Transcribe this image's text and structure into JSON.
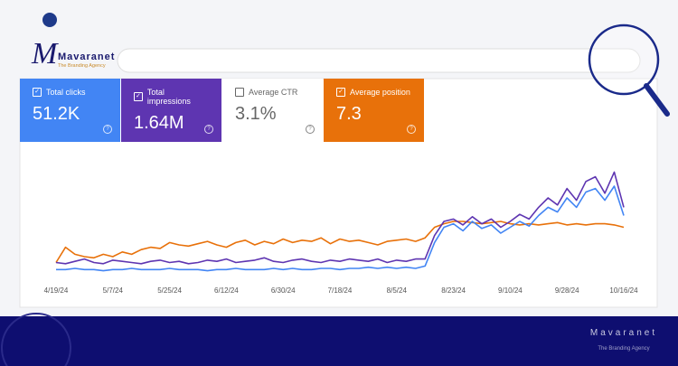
{
  "logo": {
    "name": "Mavaranet",
    "tagline": "The Branding Agency"
  },
  "metrics": [
    {
      "label": "Total clicks",
      "value": "51.2K",
      "checked": true,
      "color": "#4285f4"
    },
    {
      "label": "Total impressions",
      "value": "1.64M",
      "checked": true,
      "color": "#5e35b1"
    },
    {
      "label": "Average CTR",
      "value": "3.1%",
      "checked": false,
      "color": "#ffffff"
    },
    {
      "label": "Average position",
      "value": "7.3",
      "checked": true,
      "color": "#e8710a"
    }
  ],
  "chart_data": {
    "type": "line",
    "categories": [
      "4/19/24",
      null,
      null,
      null,
      null,
      null,
      "5/7/24",
      null,
      null,
      null,
      null,
      null,
      "5/25/24",
      null,
      null,
      null,
      null,
      null,
      "6/12/24",
      null,
      null,
      null,
      null,
      null,
      "6/30/24",
      null,
      null,
      null,
      null,
      null,
      "7/18/24",
      null,
      null,
      null,
      null,
      null,
      "8/5/24",
      null,
      null,
      null,
      null,
      null,
      "8/23/24",
      null,
      null,
      null,
      null,
      null,
      "9/10/24",
      null,
      null,
      null,
      null,
      null,
      "9/28/24",
      null,
      null,
      null,
      null,
      null,
      "10/16/24"
    ],
    "series": [
      {
        "name": "Total clicks",
        "color": "#4285f4",
        "values": [
          9,
          9,
          10,
          9,
          9,
          8,
          9,
          9,
          10,
          9,
          9,
          9,
          10,
          9,
          9,
          9,
          8,
          9,
          9,
          10,
          9,
          9,
          9,
          10,
          9,
          10,
          9,
          9,
          10,
          10,
          9,
          10,
          10,
          11,
          10,
          11,
          10,
          11,
          10,
          12,
          32,
          45,
          48,
          42,
          50,
          44,
          47,
          40,
          45,
          50,
          46,
          55,
          62,
          58,
          70,
          62,
          75,
          78,
          68,
          80,
          55
        ]
      },
      {
        "name": "Total impressions",
        "color": "#5e35b1",
        "values": [
          15,
          14,
          16,
          18,
          15,
          14,
          17,
          16,
          15,
          14,
          16,
          17,
          15,
          16,
          14,
          15,
          17,
          16,
          18,
          15,
          16,
          17,
          19,
          16,
          15,
          17,
          18,
          16,
          15,
          17,
          16,
          18,
          17,
          16,
          18,
          15,
          17,
          16,
          18,
          18,
          38,
          50,
          52,
          47,
          54,
          48,
          52,
          45,
          50,
          56,
          52,
          62,
          70,
          64,
          78,
          68,
          84,
          88,
          74,
          92,
          62
        ]
      },
      {
        "name": "Average position",
        "color": "#e8710a",
        "values": [
          15,
          28,
          22,
          20,
          19,
          22,
          20,
          24,
          22,
          26,
          28,
          27,
          32,
          30,
          29,
          31,
          33,
          30,
          28,
          32,
          34,
          30,
          33,
          31,
          35,
          32,
          34,
          33,
          36,
          31,
          35,
          33,
          34,
          32,
          30,
          33,
          34,
          35,
          33,
          36,
          45,
          48,
          50,
          50,
          49,
          48,
          49,
          50,
          48,
          47,
          48,
          47,
          48,
          49,
          47,
          48,
          47,
          48,
          48,
          47,
          45
        ]
      }
    ],
    "ylim": [
      0,
      100
    ]
  },
  "footer": {
    "name": "Mavaranet",
    "tagline": "The Branding Agency"
  }
}
